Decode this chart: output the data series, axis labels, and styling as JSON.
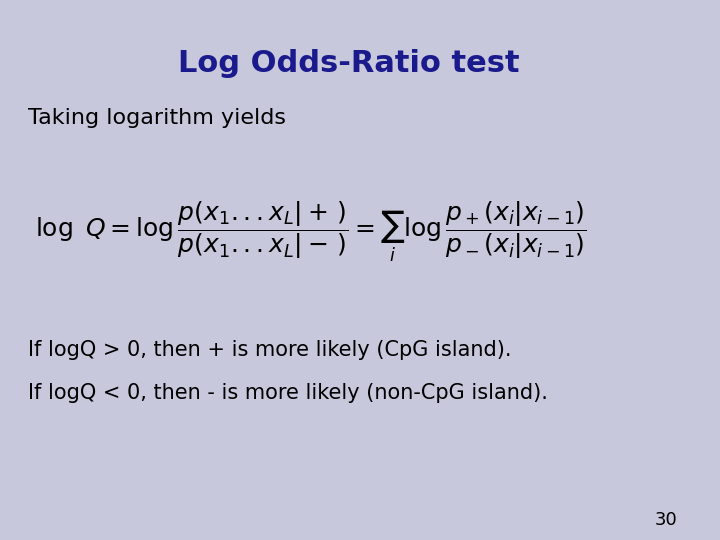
{
  "title": "Log Odds-Ratio test",
  "title_color": "#1a1a8c",
  "title_fontsize": 22,
  "background_color": "#c8c8dc",
  "subtitle": "Taking logarithm yields",
  "subtitle_fontsize": 16,
  "subtitle_color": "#000000",
  "formula": "$\\log\\ Q = \\log\\dfrac{p(x_1...x_L|+\\,)}{p(x_1...x_L|-\\,)} = \\sum_i \\log\\dfrac{p_+(x_i|x_{i-1})}{p_-(x_i|x_{i-1})}$",
  "formula_fontsize": 16,
  "line1": "If logQ > 0, then + is more likely (CpG island).",
  "line2": "If logQ < 0, then - is more likely (non-CpG island).",
  "text_fontsize": 15,
  "text_color": "#000000",
  "page_number": "30",
  "page_fontsize": 13,
  "page_color": "#000000"
}
